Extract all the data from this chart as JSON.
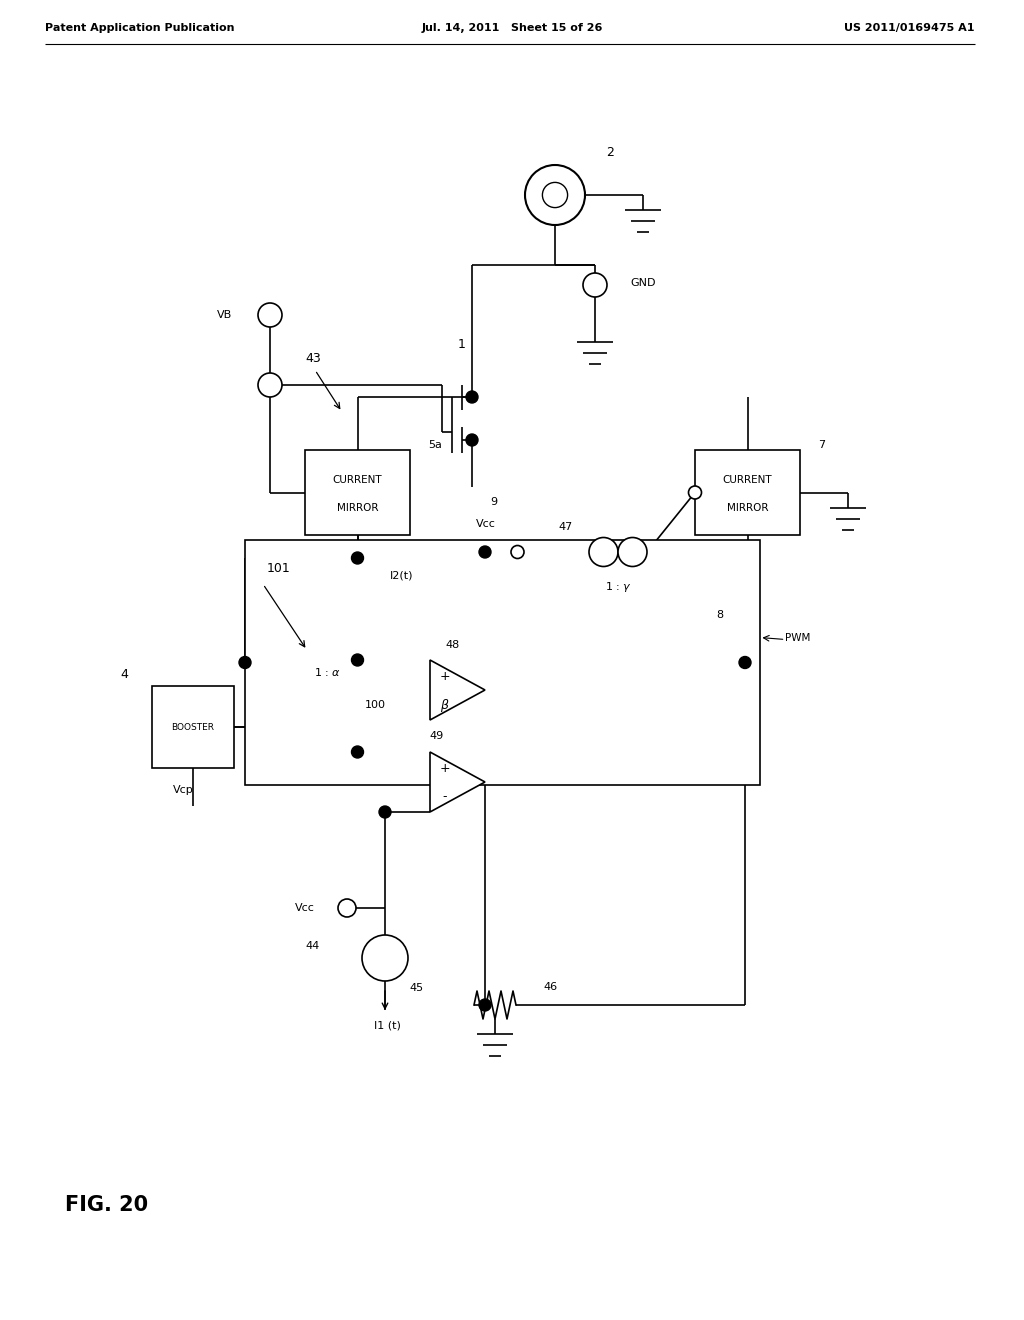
{
  "header_left": "Patent Application Publication",
  "header_mid": "Jul. 14, 2011   Sheet 15 of 26",
  "header_right": "US 2011/0169475 A1",
  "fig_label": "FIG. 20",
  "bg_color": "#ffffff",
  "line_color": "#000000",
  "fig_width": 10.24,
  "fig_height": 13.2
}
